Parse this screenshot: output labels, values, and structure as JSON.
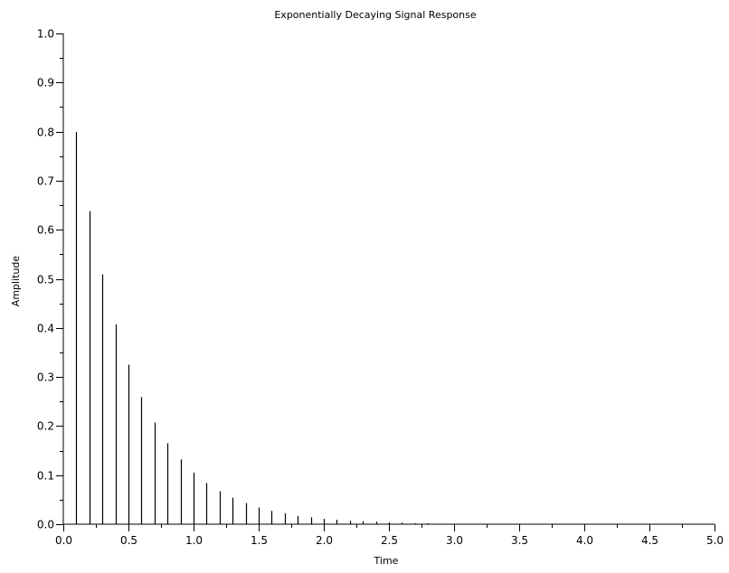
{
  "chart_data": {
    "type": "stem",
    "title": "Exponentially Decaying Signal Response",
    "xlabel": "Time",
    "ylabel": "Amplitude",
    "xlim": [
      0,
      5
    ],
    "ylim": [
      0,
      1
    ],
    "x_ticks": [
      "0.0",
      "0.5",
      "1.0",
      "1.5",
      "2.0",
      "2.5",
      "3.0",
      "3.5",
      "4.0",
      "4.5",
      "5.0"
    ],
    "y_ticks": [
      "0.0",
      "0.1",
      "0.2",
      "0.3",
      "0.4",
      "0.5",
      "0.6",
      "0.7",
      "0.8",
      "0.9",
      "1.0"
    ],
    "grid": false,
    "stem_color": "#000000",
    "x": [
      0.1,
      0.2,
      0.3,
      0.4,
      0.5,
      0.6,
      0.7,
      0.8,
      0.9,
      1.0,
      1.1,
      1.2,
      1.3,
      1.4,
      1.5,
      1.6,
      1.7,
      1.8,
      1.9,
      2.0,
      2.1,
      2.2,
      2.3,
      2.4,
      2.5,
      2.6,
      2.7,
      2.8
    ],
    "values": [
      0.799,
      0.638,
      0.509,
      0.407,
      0.325,
      0.259,
      0.207,
      0.165,
      0.132,
      0.105,
      0.084,
      0.067,
      0.054,
      0.043,
      0.034,
      0.027,
      0.022,
      0.017,
      0.014,
      0.011,
      0.009,
      0.007,
      0.006,
      0.005,
      0.004,
      0.003,
      0.002,
      0.002
    ]
  }
}
